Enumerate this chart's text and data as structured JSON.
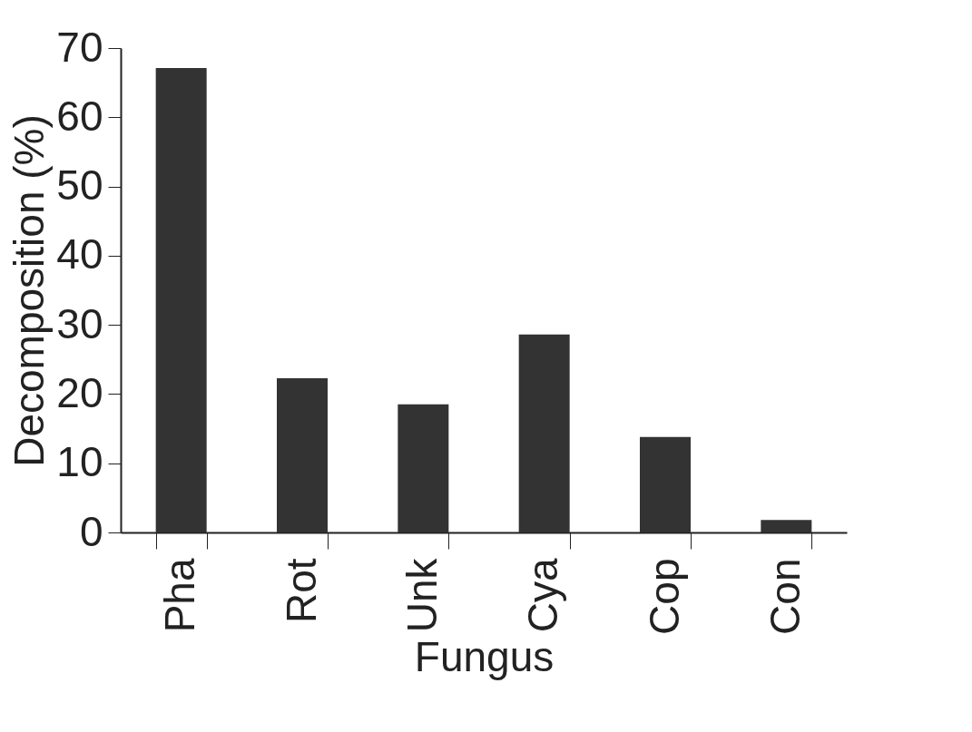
{
  "chart_data": {
    "type": "bar",
    "xlabel": "Fungus",
    "ylabel": "Decomposition (%)",
    "categories": [
      "Pha",
      "Rot",
      "Unk",
      "Cya",
      "Cop",
      "Con"
    ],
    "values": [
      67.1,
      22.3,
      18.5,
      28.6,
      13.8,
      1.8
    ],
    "color": "#333333",
    "ylim": [
      0,
      70
    ],
    "yticks": [
      0,
      10,
      20,
      30,
      40,
      50,
      60,
      70
    ],
    "grid": false
  }
}
